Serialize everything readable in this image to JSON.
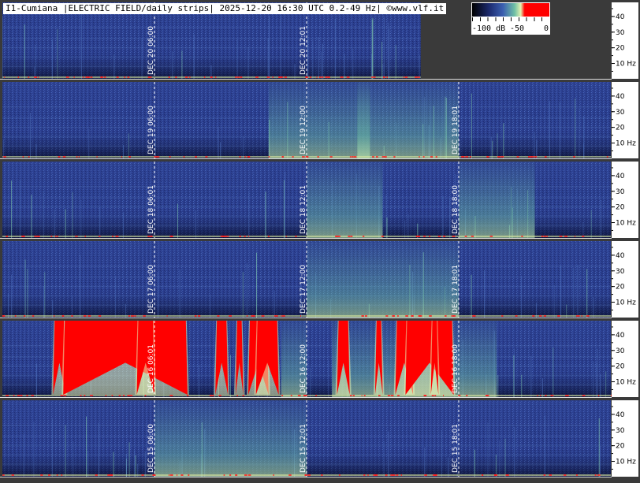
{
  "header": {
    "title": "I1-Cumiana |ELECTRIC FIELD/daily strips| 2025-12-20 16:30 UTC 0.2-49 Hz| ©www.vlf.it"
  },
  "color_scale": {
    "labels": [
      "-100 dB",
      "-50",
      "0"
    ],
    "colors": [
      "#000000",
      "#1c2a6e",
      "#3b5fb0",
      "#6fc0a5",
      "#e4f2b0",
      "#ff0000"
    ]
  },
  "chart_data": {
    "type": "heatmap",
    "title": "I1-Cumiana |ELECTRIC FIELD/daily strips| 2025-12-20 16:30 UTC 0.2-49 Hz| ©www.vlf.it",
    "ylabel": "Hz",
    "ylim": [
      0.2,
      49
    ],
    "y_ticks": [
      "40",
      "30",
      "20",
      "10 Hz"
    ],
    "y_tick_values": [
      40,
      30,
      20,
      10
    ],
    "x_hours_per_strip": [
      0,
      24
    ],
    "strips": [
      {
        "day": "DEC 20",
        "coverage_hours": [
          0,
          16.5
        ],
        "markers": [
          {
            "hour": 6,
            "label": "DEC 20  06:00"
          },
          {
            "hour": 12,
            "label": "DEC 20  12:01"
          }
        ],
        "red_bursts": [],
        "green_bursts": []
      },
      {
        "day": "DEC 19",
        "coverage_hours": [
          0,
          24
        ],
        "markers": [
          {
            "hour": 6,
            "label": "DEC 19  06:00"
          },
          {
            "hour": 12,
            "label": "DEC 19  12:00"
          },
          {
            "hour": 18,
            "label": "DEC 19  18:01"
          }
        ],
        "red_bursts": [],
        "green_bursts": [
          [
            10.5,
            14.5
          ],
          [
            14,
            18
          ]
        ]
      },
      {
        "day": "DEC 18",
        "coverage_hours": [
          0,
          24
        ],
        "markers": [
          {
            "hour": 6,
            "label": "DEC 18  06:01"
          },
          {
            "hour": 12,
            "label": "DEC 18  12:01"
          },
          {
            "hour": 18,
            "label": "DEC 18  18:00"
          }
        ],
        "red_bursts": [],
        "green_bursts": [
          [
            12,
            15
          ],
          [
            18,
            21
          ]
        ]
      },
      {
        "day": "DEC 17",
        "coverage_hours": [
          0,
          24
        ],
        "markers": [
          {
            "hour": 6,
            "label": "DEC 17  06:00"
          },
          {
            "hour": 12,
            "label": "DEC 17  12:00"
          },
          {
            "hour": 18,
            "label": "DEC 17  18:01"
          }
        ],
        "red_bursts": [],
        "green_bursts": [
          [
            12,
            18
          ]
        ]
      },
      {
        "day": "DEC 16",
        "coverage_hours": [
          0,
          24
        ],
        "markers": [
          {
            "hour": 6,
            "label": "DEC 16  06:01"
          },
          {
            "hour": 12,
            "label": "DEC 16  12:00"
          },
          {
            "hour": 18,
            "label": "DEC 16  18:00"
          }
        ],
        "red_bursts": [
          [
            2.0,
            2.5
          ],
          [
            2.4,
            7.3
          ],
          [
            5.3,
            6.0
          ],
          [
            8.4,
            8.9
          ],
          [
            9.2,
            9.5
          ],
          [
            9.7,
            10.5
          ],
          [
            10.0,
            10.9
          ],
          [
            13.2,
            13.7
          ],
          [
            14.7,
            15.0
          ],
          [
            15.5,
            16.2
          ],
          [
            15.9,
            17.8
          ],
          [
            16.9,
            17.2
          ]
        ],
        "green_bursts": [
          [
            11,
            12
          ],
          [
            13,
            19
          ],
          [
            19.0,
            19.5
          ]
        ]
      },
      {
        "day": "DEC 15",
        "coverage_hours": [
          0,
          24
        ],
        "markers": [
          {
            "hour": 6,
            "label": "DEC 15  06:00"
          },
          {
            "hour": 12,
            "label": "DEC 15  12:01"
          },
          {
            "hour": 18,
            "label": "DEC 15  18:01"
          }
        ],
        "red_bursts": [],
        "green_bursts": [
          [
            6,
            12
          ]
        ]
      }
    ]
  }
}
